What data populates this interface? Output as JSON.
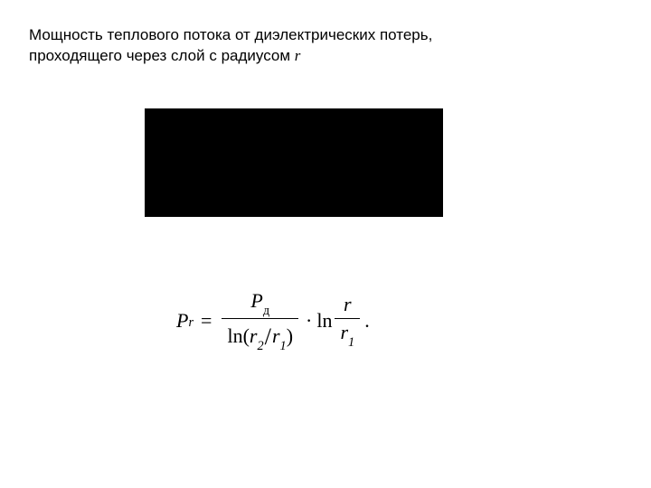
{
  "heading": {
    "line1": "Мощность теплового потока от диэлектрических потерь,",
    "line2_pre": "проходящего через слой с радиусом ",
    "line2_var": "r"
  },
  "equation": {
    "lhs_P": "P",
    "lhs_sub": "r",
    "eq": "=",
    "frac1_num_P": "P",
    "frac1_num_sub": "д",
    "frac1_den_ln": "ln",
    "frac1_den_lparen": "(",
    "frac1_den_r2": "r",
    "frac1_den_r2sub": "2",
    "frac1_den_slash": "/",
    "frac1_den_r1": "r",
    "frac1_den_r1sub": "1",
    "frac1_den_rparen": ")",
    "cdot": "·",
    "ln2": "ln",
    "frac2_num": "r",
    "frac2_den_r": "r",
    "frac2_den_sub": "1",
    "period": "."
  },
  "styles": {
    "background": "#ffffff",
    "text_color": "#000000",
    "box_color": "#000000",
    "heading_fontsize": 17,
    "equation_fontsize": 22
  }
}
